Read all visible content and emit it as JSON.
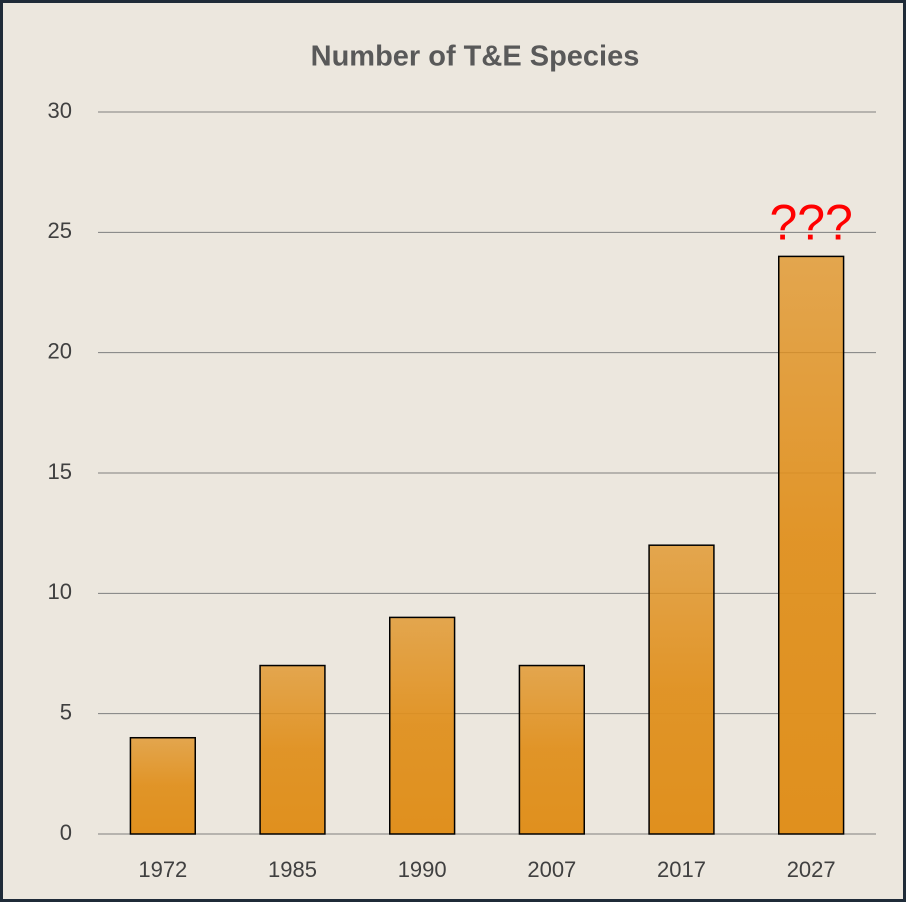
{
  "chart_data": {
    "type": "bar",
    "title": "Number of T&E Species",
    "categories": [
      "1972",
      "1985",
      "1990",
      "2007",
      "2017",
      "2027"
    ],
    "values": [
      4,
      7,
      9,
      7,
      12,
      24
    ],
    "color": "#e0901e",
    "annotation": "???",
    "annotation_color": "#ff0000",
    "ylim": [
      0,
      30
    ],
    "yticks": [
      0,
      5,
      10,
      15,
      20,
      25,
      30
    ],
    "grid": true
  }
}
